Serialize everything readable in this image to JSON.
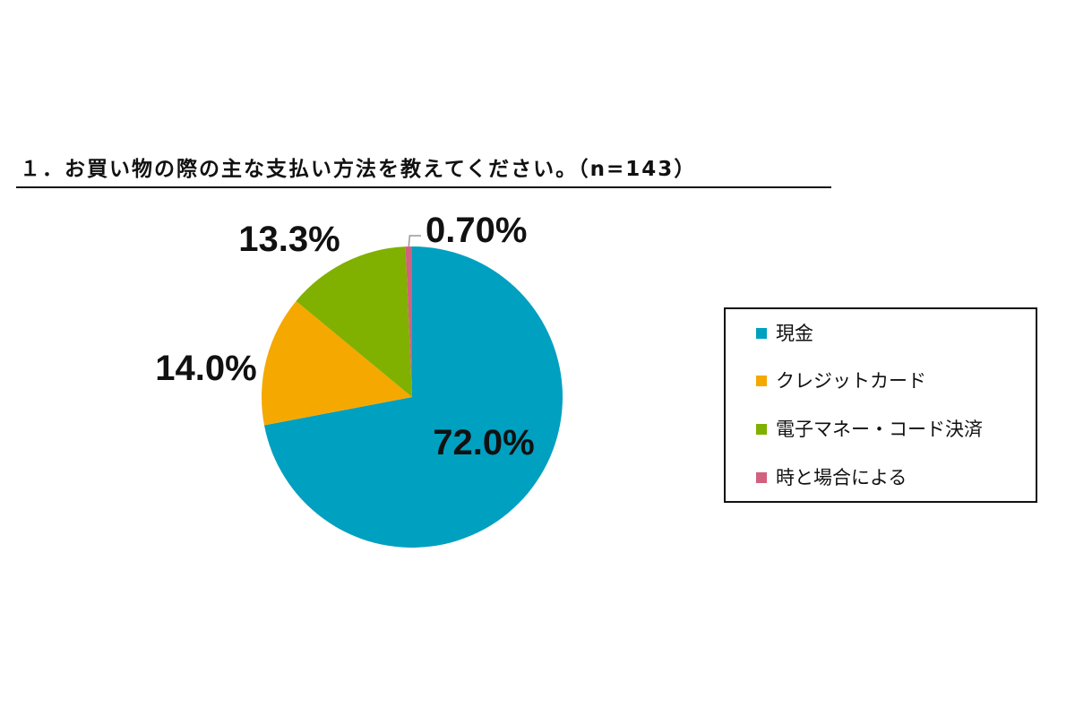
{
  "chart_data": {
    "type": "pie",
    "title": "１．お買い物の際の主な支払い方法を教えてください。（n=143）",
    "sample_size": 143,
    "slices": [
      {
        "label": "現金",
        "value": 72.0,
        "display": "72.0%",
        "color": "#00A0C0"
      },
      {
        "label": "クレジットカード",
        "value": 14.0,
        "display": "14.0%",
        "color": "#F5A800"
      },
      {
        "label": "電子マネー・コード決済",
        "value": 13.3,
        "display": "13.3%",
        "color": "#80B000"
      },
      {
        "label": "時と場合による",
        "value": 0.7,
        "display": "0.70%",
        "color": "#D2607E"
      }
    ],
    "legend_position": "right"
  }
}
